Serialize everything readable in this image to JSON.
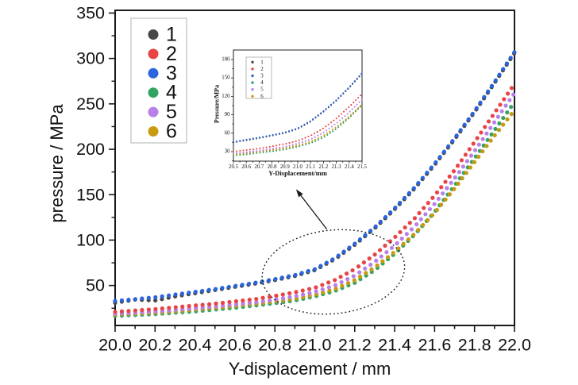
{
  "chart_data": {
    "type": "scatter",
    "title": "",
    "xlabel": "Y-displacement / mm",
    "ylabel": "pressure / MPa",
    "x_range": [
      20.0,
      22.0
    ],
    "y_range": [
      6,
      353
    ],
    "x_ticks": [
      20.0,
      20.2,
      20.4,
      20.6,
      20.8,
      21.0,
      21.2,
      21.4,
      21.6,
      21.8,
      22.0
    ],
    "x_minor_step": 0.1,
    "y_ticks": [
      50,
      100,
      150,
      200,
      250,
      300,
      350
    ],
    "y_minor_step": 25,
    "grid": false,
    "legend_position": "top-left-inside",
    "legend": [
      "1",
      "2",
      "3",
      "4",
      "5",
      "6"
    ],
    "x_start": 20.0,
    "x_step": 0.1,
    "series": [
      {
        "name": "1",
        "color": "#474747",
        "values": [
          31,
          34.5,
          33.5,
          38,
          41.5,
          45,
          48.5,
          52,
          56,
          60.5,
          67,
          79,
          95,
          113,
          134,
          157,
          183,
          211,
          241,
          273,
          306
        ]
      },
      {
        "name": "2",
        "color": "#e84444",
        "values": [
          21,
          22.5,
          24,
          26,
          28,
          30,
          32.5,
          35,
          38.5,
          42.5,
          47.5,
          56,
          68,
          84,
          103,
          124,
          149,
          177,
          208,
          240,
          272
        ]
      },
      {
        "name": "3",
        "color": "#2b65dd",
        "values": [
          33,
          35,
          37,
          40,
          43,
          46,
          49.5,
          53,
          57,
          61.5,
          68,
          80,
          96,
          114,
          135,
          158,
          184,
          212,
          242,
          274,
          307
        ]
      },
      {
        "name": "4",
        "color": "#33a363",
        "values": [
          16.5,
          17.5,
          18.5,
          20,
          21.5,
          23.5,
          25.5,
          28,
          30.5,
          33.5,
          38,
          44,
          53,
          67,
          85,
          106,
          131,
          160,
          190,
          221,
          252
        ]
      },
      {
        "name": "5",
        "color": "#b97fe8",
        "values": [
          19,
          20,
          21.5,
          23,
          25,
          27,
          29,
          31.5,
          34.5,
          38,
          43,
          50,
          61,
          76,
          94,
          115,
          140,
          168,
          198,
          230,
          262
        ]
      },
      {
        "name": "6",
        "color": "#c79a10",
        "values": [
          18,
          19,
          20,
          21.5,
          23.5,
          25.5,
          27.5,
          30,
          32.5,
          35.5,
          40,
          46,
          56,
          70,
          87,
          107,
          130,
          157,
          186,
          215,
          243
        ]
      }
    ],
    "draw_order": [
      "1",
      "4",
      "6",
      "5",
      "2",
      "3"
    ],
    "inset": {
      "xlabel": "Y-Displacement/mm",
      "ylabel": "Pressure/MPa",
      "x_range": [
        20.5,
        21.5
      ],
      "x_tick_step": 0.1,
      "x_minor_step": 0.05,
      "y_ticks": [
        30,
        60,
        90,
        120,
        150,
        180
      ],
      "y_minor_step": 15,
      "legend": [
        "1",
        "2",
        "3",
        "4",
        "5",
        "6"
      ]
    },
    "annotations": {
      "ellipse": {
        "cx_mm": 21.093,
        "cy_mpa": 65,
        "rx_mm": 0.358,
        "ry_mpa": 46,
        "rotation_deg": -6
      },
      "arrow": {
        "from_mm": 21.06,
        "from_mpa": 112,
        "to_mm": 20.906,
        "to_mpa": 156
      }
    }
  }
}
